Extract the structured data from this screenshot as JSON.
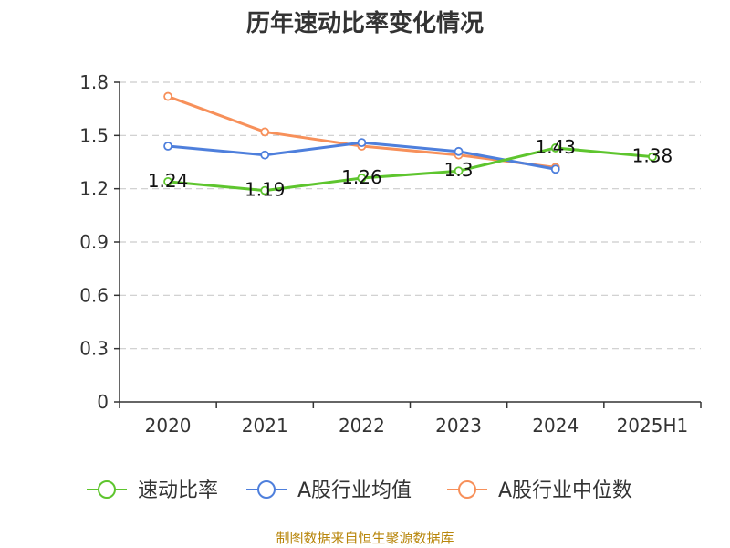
{
  "colors": {
    "speed_ratio": "#5ec52e",
    "industry_avg": "#4e7fdc",
    "industry_median": "#f7905a",
    "source": "#b8860b"
  },
  "chart_data": {
    "type": "line",
    "title": "历年速动比率变化情况",
    "categories": [
      "2020",
      "2021",
      "2022",
      "2023",
      "2024",
      "2025H1"
    ],
    "y_ticks": [
      "0",
      "0.3",
      "0.6",
      "0.9",
      "1.2",
      "1.5",
      "1.8"
    ],
    "ylim": [
      0,
      1.8
    ],
    "grid": true,
    "legend_position": "bottom",
    "series": [
      {
        "name": "速动比率",
        "color": "#5ec52e",
        "values": [
          1.24,
          1.19,
          1.26,
          1.3,
          1.43,
          1.38
        ],
        "labels": [
          "1.24",
          "1.19",
          "1.26",
          "1.3",
          "1.43",
          "1.38"
        ]
      },
      {
        "name": "A股行业均值",
        "color": "#4e7fdc",
        "values": [
          1.44,
          1.39,
          1.46,
          1.41,
          1.31,
          null
        ]
      },
      {
        "name": "A股行业中位数",
        "color": "#f7905a",
        "values": [
          1.72,
          1.52,
          1.44,
          1.39,
          1.32,
          null
        ]
      }
    ],
    "source": "制图数据来自恒生聚源数据库"
  }
}
